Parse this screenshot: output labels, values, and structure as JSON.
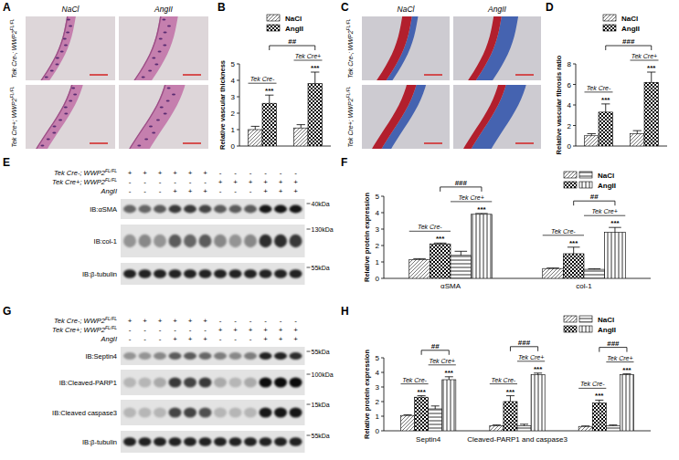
{
  "panel_labels": [
    "A",
    "B",
    "C",
    "D",
    "E",
    "F",
    "G",
    "H"
  ],
  "images": [
    {
      "columns": [
        "NaCl",
        "AngII"
      ],
      "rows": [
        {
          "text": "Tek Cre-; WWP2",
          "sup": "FL/FL"
        },
        {
          "text": "Tek Cre+; WWP2",
          "sup": "FL/FL"
        }
      ]
    },
    {
      "columns": [
        "NaCl",
        "AngII"
      ],
      "rows": [
        {
          "text": "Tek Cre-; WWP2",
          "sup": "FL/FL"
        },
        {
          "text": "Tek Cre+; WWP2",
          "sup": "FL/FL"
        }
      ]
    }
  ],
  "chart_data": [
    {
      "type": "bar",
      "y_label": "Relative vascular thickness",
      "categories": [
        "Tek Cre-",
        "Tek Cre+"
      ],
      "series": [
        {
          "name": "NaCl",
          "color": "#666666",
          "values": [
            1.0,
            1.1
          ],
          "errors": [
            0.2,
            0.2
          ]
        },
        {
          "name": "AngII",
          "color": "#000000",
          "values": [
            2.6,
            3.8
          ],
          "errors": [
            0.5,
            0.7
          ]
        }
      ],
      "ylim": [
        0,
        5
      ],
      "yticks": [
        0,
        1,
        2,
        3,
        4,
        5
      ],
      "annotations": [
        {
          "text": "***",
          "series": 1,
          "category": 0
        },
        {
          "text": "***",
          "series": 1,
          "category": 1
        }
      ],
      "brackets": [
        {
          "text": "##",
          "from": [
            1,
            0
          ],
          "to": [
            1,
            1
          ]
        }
      ],
      "legend": "top"
    },
    {
      "type": "bar",
      "y_label": "Relative vascular fibrosis ratio",
      "categories": [
        "Tek Cre-",
        "Tek Cre+"
      ],
      "series": [
        {
          "name": "NaCl",
          "color": "#666666",
          "values": [
            1.0,
            1.2
          ],
          "errors": [
            0.2,
            0.3
          ]
        },
        {
          "name": "AngII",
          "color": "#000000",
          "values": [
            3.3,
            6.2
          ],
          "errors": [
            0.8,
            1.0
          ]
        }
      ],
      "ylim": [
        0,
        8
      ],
      "yticks": [
        0,
        2,
        4,
        6,
        8
      ],
      "annotations": [
        {
          "text": "***",
          "series": 1,
          "category": 0
        },
        {
          "text": "***",
          "series": 1,
          "category": 1
        }
      ],
      "brackets": [
        {
          "text": "###",
          "from": [
            1,
            0
          ],
          "to": [
            1,
            1
          ]
        }
      ],
      "legend": "top"
    },
    {
      "type": "bar",
      "y_label": "Relative protein expression",
      "categories": [
        "αSMA",
        "col-1"
      ],
      "series": [
        {
          "name": "NaCl",
          "color": "#666666",
          "values": [
            1.15,
            0.6
          ],
          "errors": [
            0.05,
            0.03
          ]
        },
        {
          "name": "AngII",
          "color": "#000000",
          "values": [
            2.1,
            1.5
          ],
          "errors": [
            0.05,
            0.4
          ]
        },
        {
          "name": "NaCl",
          "color": "#000000",
          "values": [
            1.4,
            0.55
          ],
          "errors": [
            0.25,
            0.03
          ]
        },
        {
          "name": "AngII",
          "color": "#000000",
          "values": [
            3.9,
            2.8
          ],
          "errors": [
            0.05,
            0.3
          ]
        }
      ],
      "ylim": [
        0,
        5
      ],
      "yticks": [
        0,
        1,
        2,
        3,
        4,
        5
      ],
      "group_labels": [
        {
          "text": "Tek Cre-",
          "series": [
            0,
            1
          ],
          "category": 0
        },
        {
          "text": "Tek Cre+",
          "series": [
            2,
            3
          ],
          "category": 0
        },
        {
          "text": "Tek Cre-",
          "series": [
            0,
            1
          ],
          "category": 1
        },
        {
          "text": "Tek Cre+",
          "series": [
            2,
            3
          ],
          "category": 1
        }
      ],
      "annotations": [
        {
          "text": "***",
          "series": 1,
          "category": 0
        },
        {
          "text": "***",
          "series": 3,
          "category": 0
        },
        {
          "text": "***",
          "series": 1,
          "category": 1
        },
        {
          "text": "***",
          "series": 3,
          "category": 1
        }
      ],
      "brackets": [
        {
          "text": "###",
          "from": [
            1,
            0
          ],
          "to": [
            3,
            0
          ]
        },
        {
          "text": "##",
          "from": [
            1,
            1
          ],
          "to": [
            3,
            1
          ]
        }
      ],
      "legend": "top-right"
    },
    {
      "type": "bar",
      "y_label": "Relative protein expression",
      "categories": [
        "Septin4",
        "Cleaved-PARP1 and caspase3",
        null
      ],
      "series": [
        {
          "name": "NaCl",
          "color": "#666666",
          "values": [
            1.05,
            0.35,
            0.3
          ],
          "errors": [
            0.05,
            0.05,
            0.03
          ]
        },
        {
          "name": "AngII",
          "color": "#000000",
          "values": [
            2.3,
            2.0,
            1.9
          ],
          "errors": [
            0.1,
            0.4,
            0.2
          ]
        },
        {
          "name": "NaCl",
          "color": "#000000",
          "values": [
            1.5,
            0.35,
            0.35
          ],
          "errors": [
            0.2,
            0.1,
            0.05
          ]
        },
        {
          "name": "AngII",
          "color": "#000000",
          "values": [
            3.5,
            3.85,
            3.85
          ],
          "errors": [
            0.2,
            0.1,
            0.05
          ]
        }
      ],
      "ylim": [
        0,
        5
      ],
      "yticks": [
        0,
        1,
        2,
        3,
        4,
        5
      ],
      "group_labels": [
        {
          "text": "Tek Cre-",
          "series": [
            0,
            1
          ],
          "category": 0
        },
        {
          "text": "Tek Cre+",
          "series": [
            2,
            3
          ],
          "category": 0
        },
        {
          "text": "Tek Cre-",
          "series": [
            0,
            1
          ],
          "category": 1
        },
        {
          "text": "Tek Cre+",
          "series": [
            2,
            3
          ],
          "category": 1
        },
        {
          "text": "Tek Cre-",
          "series": [
            0,
            1
          ],
          "category": 2
        },
        {
          "text": "Tek Cre+",
          "series": [
            2,
            3
          ],
          "category": 2
        }
      ],
      "annotations": [
        {
          "text": "***",
          "series": 1,
          "category": 0
        },
        {
          "text": "***",
          "series": 3,
          "category": 0
        },
        {
          "text": "***",
          "series": 1,
          "category": 1
        },
        {
          "text": "***",
          "series": 3,
          "category": 1
        },
        {
          "text": "***",
          "series": 1,
          "category": 2
        },
        {
          "text": "***",
          "series": 3,
          "category": 2
        }
      ],
      "brackets": [
        {
          "text": "##",
          "from": [
            1,
            0
          ],
          "to": [
            3,
            0
          ]
        },
        {
          "text": "###",
          "from": [
            1,
            1
          ],
          "to": [
            3,
            1
          ]
        },
        {
          "text": "###",
          "from": [
            1,
            2
          ],
          "to": [
            3,
            2
          ]
        }
      ],
      "legend": "top-right"
    }
  ],
  "blots": [
    {
      "header": [
        {
          "text": "Tek Cre-; WWP2",
          "sup": "FL/FL",
          "signs": [
            "+",
            "+",
            "+",
            "+",
            "+",
            "+",
            "-",
            "-",
            "-",
            "-",
            "-",
            "-"
          ]
        },
        {
          "text": "Tek Cre+; WWP2",
          "sup": "FL/FL",
          "signs": [
            "-",
            "-",
            "-",
            "-",
            "-",
            "-",
            "+",
            "+",
            "+",
            "+",
            "+",
            "+"
          ]
        },
        {
          "text": "AngII",
          "signs": [
            "-",
            "-",
            "-",
            "+",
            "+",
            "+",
            "-",
            "-",
            "-",
            "+",
            "+",
            "+"
          ]
        }
      ],
      "rows": [
        {
          "label": "IB:αSMA",
          "size": "40kDa",
          "intensity": [
            0.55,
            0.55,
            0.6,
            0.75,
            0.75,
            0.7,
            0.6,
            0.6,
            0.6,
            0.9,
            0.9,
            0.9
          ]
        },
        {
          "label": "IB:col-1",
          "size": "130kDa",
          "intensity": [
            0.35,
            0.4,
            0.35,
            0.6,
            0.55,
            0.6,
            0.4,
            0.35,
            0.4,
            0.8,
            0.8,
            0.75
          ]
        },
        {
          "label": "IB:β-tubulin",
          "size": "55kDa",
          "intensity": [
            0.85,
            0.85,
            0.85,
            0.85,
            0.85,
            0.85,
            0.85,
            0.85,
            0.85,
            0.85,
            0.85,
            0.85
          ]
        }
      ]
    },
    {
      "header": [
        {
          "text": "Tek Cre-; WWP2",
          "sup": "FL/FL",
          "signs": [
            "+",
            "+",
            "+",
            "+",
            "+",
            "+",
            "-",
            "-",
            "-",
            "-",
            "-",
            "-"
          ]
        },
        {
          "text": "Tek Cre+; WWP2",
          "sup": "FL/FL",
          "signs": [
            "-",
            "-",
            "-",
            "-",
            "-",
            "-",
            "+",
            "+",
            "+",
            "+",
            "+",
            "+"
          ]
        },
        {
          "text": "AngII",
          "signs": [
            "-",
            "-",
            "-",
            "+",
            "+",
            "+",
            "-",
            "-",
            "-",
            "+",
            "+",
            "+"
          ]
        }
      ],
      "rows": [
        {
          "label": "IB:Septin4",
          "size": "55kDa",
          "intensity": [
            0.35,
            0.35,
            0.4,
            0.6,
            0.6,
            0.55,
            0.45,
            0.4,
            0.45,
            0.85,
            0.85,
            0.8
          ]
        },
        {
          "label": "IB:Cleaved-PARP1",
          "size": "100kDa",
          "intensity": [
            0.2,
            0.2,
            0.25,
            0.75,
            0.7,
            0.75,
            0.25,
            0.2,
            0.25,
            0.95,
            0.95,
            0.95
          ]
        },
        {
          "label": "IB:Cleaved caspase3",
          "size": "15kDa",
          "intensity": [
            0.2,
            0.2,
            0.2,
            0.7,
            0.7,
            0.65,
            0.2,
            0.2,
            0.2,
            0.9,
            0.9,
            0.9
          ]
        },
        {
          "label": "IB:β-tubulin",
          "size": "55kDa",
          "intensity": [
            0.85,
            0.85,
            0.85,
            0.85,
            0.85,
            0.85,
            0.85,
            0.85,
            0.85,
            0.85,
            0.85,
            0.85
          ]
        }
      ]
    }
  ]
}
